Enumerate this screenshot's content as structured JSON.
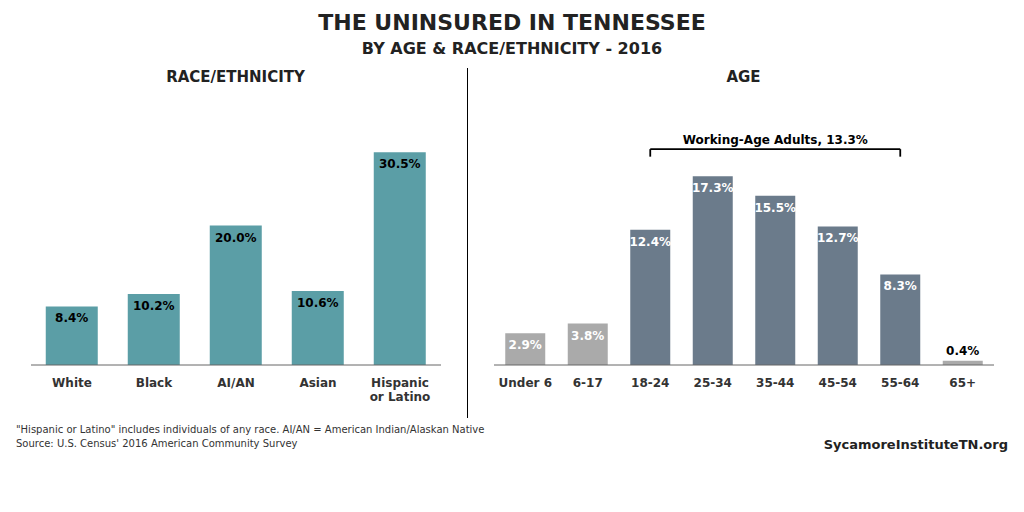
{
  "title": "THE UNINSURED IN TENNESSEE",
  "subtitle": "BY AGE & RACE/ETHNICITY - 2016",
  "annotations": [
    "\"Hispanic or Latino\" includes individuals of any race. AI/AN = American Indian/Alaskan Native",
    "Source: U.S. Census' 2016 American Community Survey",
    "SycamoreInstituteTN.org"
  ],
  "chart_data": [
    {
      "type": "bar",
      "title": "RACE/ETHNICITY",
      "categories": [
        "White",
        "Black",
        "AI/AN",
        "Asian",
        "Hispanic\nor Latino"
      ],
      "values": [
        8.4,
        10.2,
        20.0,
        10.6,
        30.5
      ],
      "value_labels": [
        "8.4%",
        "10.2%",
        "20.0%",
        "10.6%",
        "30.5%"
      ],
      "data_labels": true,
      "color": "#5B9EA6",
      "ylim": [
        0,
        36
      ],
      "tick_labels": "x"
    },
    {
      "type": "bar",
      "title": "AGE",
      "categories": [
        "Under 6",
        "6-17",
        "18-24",
        "25-34",
        "35-44",
        "45-54",
        "55-64",
        "65+"
      ],
      "values": [
        2.9,
        3.8,
        12.4,
        17.3,
        15.5,
        12.7,
        8.3,
        0.4
      ],
      "value_labels": [
        "2.9%",
        "3.8%",
        "12.4%",
        "17.3%",
        "15.5%",
        "12.7%",
        "8.3%",
        "0.4%"
      ],
      "data_labels": true,
      "colors": [
        "#AAAAAA",
        "#AAAAAA",
        "#6B7B8B",
        "#6B7B8B",
        "#6B7B8B",
        "#6B7B8B",
        "#6B7B8B",
        "#AAAAAA"
      ],
      "ylim": [
        0,
        23
      ],
      "tick_labels": "x",
      "annotations": [
        {
          "text": "Working-Age Adults, 13.3%",
          "x_start": "18-24",
          "x_end": "55-64"
        }
      ]
    }
  ]
}
